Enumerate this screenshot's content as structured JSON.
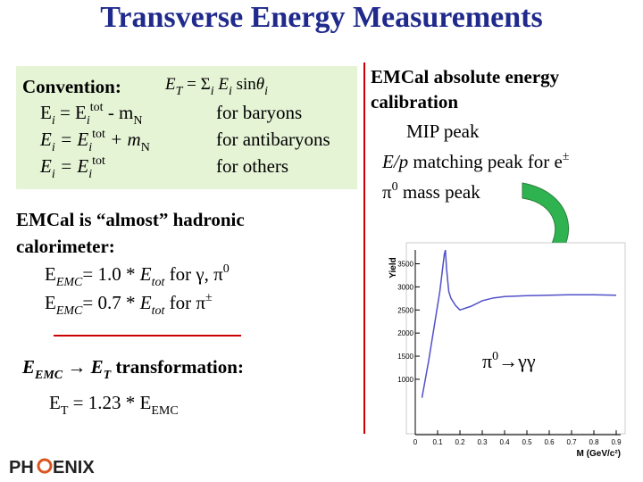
{
  "title": "Transverse Energy Measurements",
  "box": {
    "heading": "Convention:",
    "formula": [
      {
        "t": "E",
        "i": 1
      },
      {
        "t": "T",
        "i": 1,
        "sub": 1
      },
      {
        "t": " = "
      },
      {
        "t": "Σ"
      },
      {
        "t": "i",
        "i": 1,
        "sub": 1
      },
      {
        "t": " E",
        "i": 1
      },
      {
        "t": "i",
        "i": 1,
        "sub": 1
      },
      {
        "t": " sin"
      },
      {
        "t": "θ",
        "i": 1
      },
      {
        "t": "i",
        "i": 1,
        "sub": 1
      }
    ],
    "rows": [
      {
        "eq": [
          {
            "t": "E"
          },
          {
            "t": "i",
            "i": 1,
            "sub": 1
          },
          {
            "t": " = E"
          },
          {
            "t": "i",
            "i": 1,
            "sub": 1
          },
          {
            "t": "tot",
            "sup": 1
          },
          {
            "t": " - m"
          },
          {
            "t": "N",
            "sub": 1
          }
        ],
        "note": "for baryons"
      },
      {
        "eq": [
          {
            "t": "E",
            "i": 1
          },
          {
            "t": "i",
            "i": 1,
            "sub": 1
          },
          {
            "t": " = E",
            "i": 1
          },
          {
            "t": "i",
            "i": 1,
            "sub": 1
          },
          {
            "t": "tot",
            "sup": 1
          },
          {
            "t": " + m",
            "i": 1
          },
          {
            "t": "N",
            "sub": 1
          }
        ],
        "note": "for antibaryons"
      },
      {
        "eq": [
          {
            "t": "E",
            "i": 1
          },
          {
            "t": "i",
            "i": 1,
            "sub": 1
          },
          {
            "t": " = E",
            "i": 1
          },
          {
            "t": "i",
            "i": 1,
            "sub": 1
          },
          {
            "t": "tot",
            "sup": 1
          }
        ],
        "note": "for others"
      }
    ]
  },
  "left": [
    [
      {
        "t": "EMCal is “almost” hadronic",
        "b": 1
      }
    ],
    [
      {
        "t": "calorimeter:",
        "b": 1
      }
    ],
    [
      {
        "t": "E"
      },
      {
        "t": "EMC",
        "sub": 1,
        "i": 1
      },
      {
        "t": "= 1.0 * "
      },
      {
        "t": "E",
        "i": 1
      },
      {
        "t": "tot",
        "sub": 1,
        "i": 1
      },
      {
        "t": "  for γ, π"
      },
      {
        "t": "0",
        "sup": 1
      }
    ],
    [
      {
        "t": "E"
      },
      {
        "t": "EMC",
        "sub": 1,
        "i": 1
      },
      {
        "t": "= 0.7 * "
      },
      {
        "t": "E",
        "i": 1
      },
      {
        "t": "tot",
        "sub": 1,
        "i": 1
      },
      {
        "t": "  for π"
      },
      {
        "t": "±",
        "sup": 1
      }
    ],
    [
      {
        "t": "E",
        "b": 1,
        "i": 1
      },
      {
        "t": "EMC",
        "sub": 1,
        "b": 1,
        "i": 1
      },
      {
        "t": " → ",
        "b": 1
      },
      {
        "t": "E",
        "b": 1,
        "i": 1
      },
      {
        "t": "T",
        "sub": 1,
        "b": 1,
        "i": 1
      },
      {
        "t": " transformation:",
        "b": 1
      }
    ],
    [
      {
        "t": "E"
      },
      {
        "t": "T",
        "sub": 1
      },
      {
        "t": " = 1.23 * E"
      },
      {
        "t": "EMC",
        "sub": 1
      }
    ]
  ],
  "right": [
    [
      {
        "t": "EMCal absolute energy",
        "b": 1
      }
    ],
    [
      {
        "t": "calibration",
        "b": 1
      }
    ],
    [
      {
        "t": "MIP peak"
      }
    ],
    [
      {
        "t": "E/p",
        "i": 1
      },
      {
        "t": " matching peak for e"
      },
      {
        "t": "±",
        "sup": 1
      }
    ],
    [
      {
        "t": "π"
      },
      {
        "t": "0",
        "sup": 1
      },
      {
        "t": " mass peak"
      }
    ]
  ],
  "plot": {
    "type": "line",
    "annotation": [
      {
        "t": "π"
      },
      {
        "t": "0",
        "sup": 1
      },
      {
        "t": "→γγ"
      }
    ],
    "xlabel": "M (GeV/c²)",
    "ylabel": "Yield",
    "xlim": [
      0,
      0.92
    ],
    "ylim": [
      -200,
      3800
    ],
    "xticks": [
      0,
      0.1,
      0.2,
      0.3,
      0.4,
      0.5,
      0.6,
      0.7,
      0.8,
      0.9
    ],
    "yticks": [
      1000,
      1500,
      2000,
      2500,
      3000,
      3500
    ],
    "series": [
      {
        "color": "#5050c8",
        "x": [
          0.03,
          0.06,
          0.09,
          0.11,
          0.12,
          0.13,
          0.135,
          0.14,
          0.15,
          0.16,
          0.18,
          0.2,
          0.25,
          0.3,
          0.35,
          0.4,
          0.5,
          0.6,
          0.7,
          0.8,
          0.9
        ],
        "values": [
          600,
          1400,
          2300,
          2900,
          3300,
          3700,
          3800,
          3400,
          2900,
          2750,
          2600,
          2500,
          2580,
          2700,
          2760,
          2790,
          2810,
          2820,
          2830,
          2830,
          2820
        ]
      }
    ]
  },
  "logo": [
    "PH",
    "ENIX"
  ]
}
